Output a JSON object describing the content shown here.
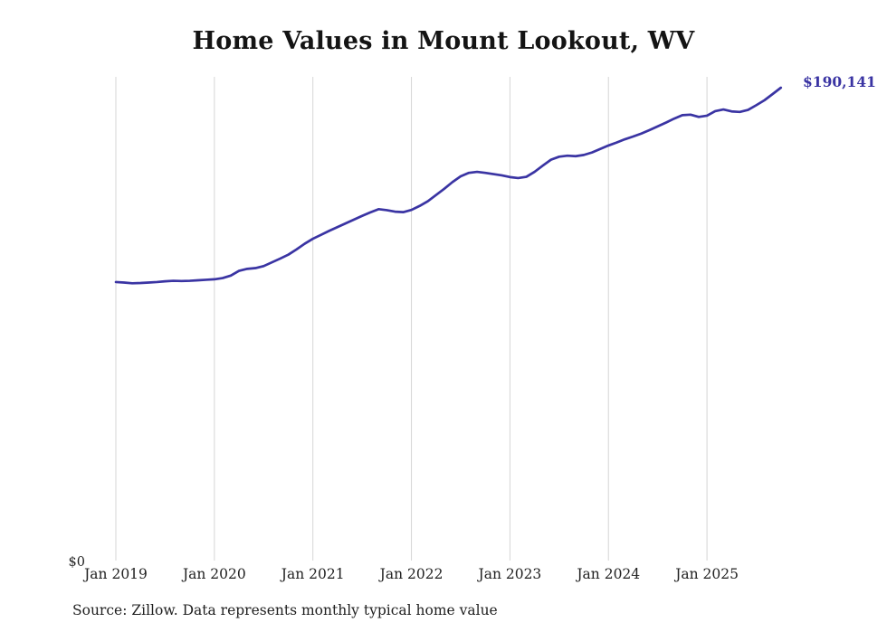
{
  "chart_data": {
    "type": "line",
    "title": "Home Values in Mount Lookout, WV",
    "end_label": "$190,141",
    "end_value": 190141,
    "x_tick_labels": [
      "Jan 2019",
      "Jan 2020",
      "Jan 2021",
      "Jan 2022",
      "Jan 2023",
      "Jan 2024",
      "Jan 2025"
    ],
    "y_tick_labels": [
      "$0"
    ],
    "ylim": [
      0,
      195000
    ],
    "grid": "vertical-only",
    "legend": false,
    "source_note": "Source: Zillow. Data represents monthly typical home value",
    "colors": {
      "line": "#3a34a3",
      "grid": "#d6d6d6",
      "axis_text": "#222222",
      "title_text": "#141414"
    },
    "series": [
      {
        "name": "Monthly typical home value",
        "start_month": "2019-01",
        "end_month": "2025-10",
        "values": [
          112000,
          111800,
          111500,
          111600,
          111800,
          112000,
          112300,
          112500,
          112400,
          112500,
          112700,
          112900,
          113100,
          113600,
          114600,
          116500,
          117300,
          117600,
          118400,
          119900,
          121400,
          123000,
          125100,
          127400,
          129400,
          131000,
          132600,
          134100,
          135600,
          137100,
          138600,
          140000,
          141300,
          140900,
          140300,
          140100,
          141000,
          142600,
          144500,
          147000,
          149500,
          152200,
          154500,
          155900,
          156300,
          155900,
          155400,
          154900,
          154200,
          153800,
          154300,
          156300,
          158800,
          161200,
          162400,
          162800,
          162600,
          163100,
          164100,
          165500,
          166900,
          168100,
          169400,
          170500,
          171700,
          173100,
          174600,
          176100,
          177700,
          179100,
          179300,
          178400,
          178900,
          180700,
          181400,
          180600,
          180400,
          181200,
          183100,
          185100,
          187600,
          190141
        ]
      }
    ]
  }
}
